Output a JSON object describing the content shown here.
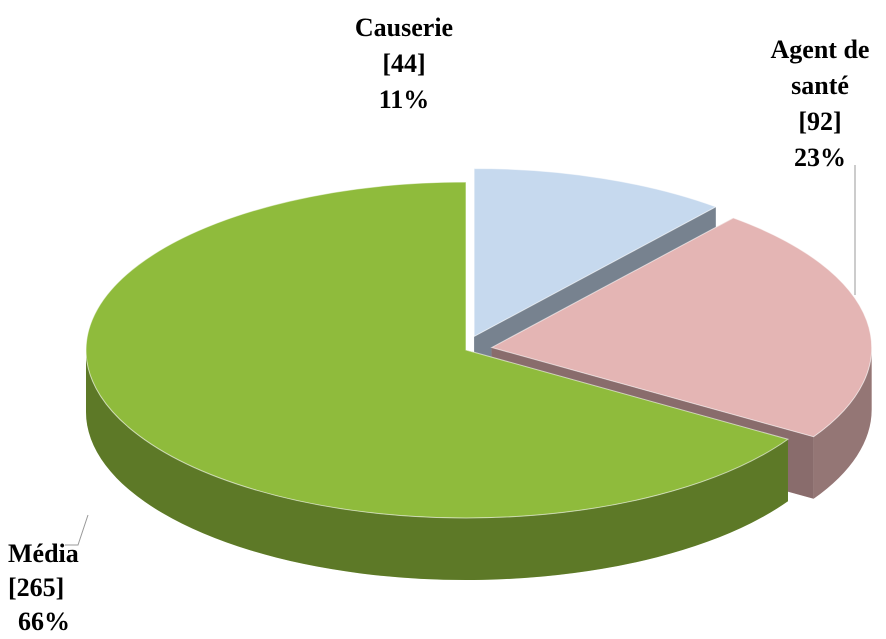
{
  "chart_data": {
    "type": "pie",
    "categories": [
      "Causerie",
      "Agent de santé",
      "Média"
    ],
    "values": [
      44,
      92,
      265
    ],
    "value_labels": [
      "[44]",
      "[92]",
      "[265]"
    ],
    "percentages": [
      11,
      23,
      66
    ],
    "percentage_labels": [
      "11%",
      "23%",
      "66%"
    ],
    "colors": [
      "#c6d9ee",
      "#e4b5b4",
      "#8fbb3c"
    ]
  }
}
